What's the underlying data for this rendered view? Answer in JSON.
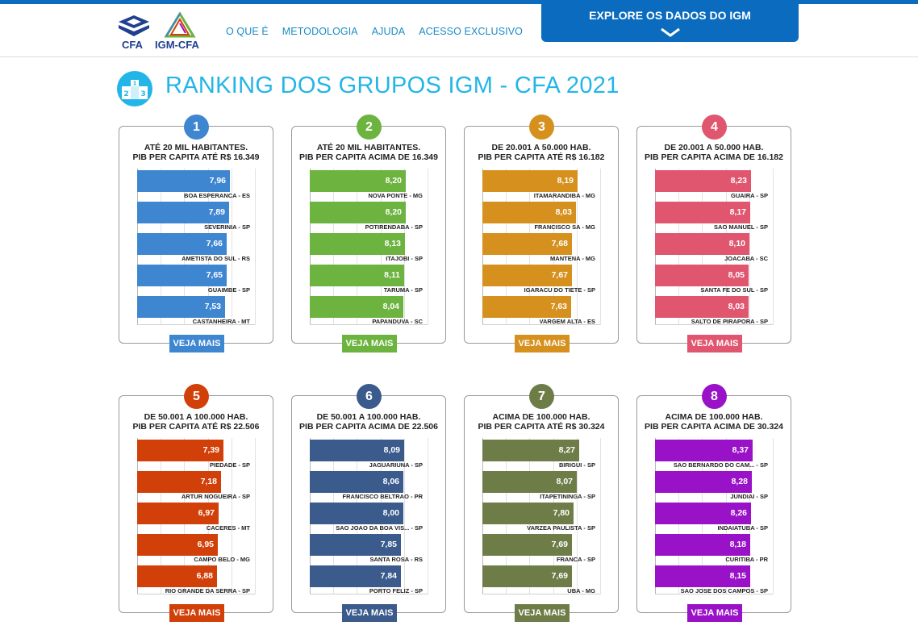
{
  "header": {
    "cfa_logo_text": "CFA",
    "igm_logo_text": "IGM-CFA",
    "nav": [
      "O QUE É",
      "METODOLOGIA",
      "AJUDA",
      "ACESSO EXCLUSIVO"
    ],
    "explore_label": "EXPLORE OS DADOS DO IGM"
  },
  "page_title": "RANKING DOS GRUPOS IGM - CFA 2021",
  "veja_label": "VEJA MAIS",
  "groups": [
    {
      "number": "1",
      "color": "#3f86d1",
      "title1": "ATÉ 20 MIL HABITANTES.",
      "title2": "PIB PER CAPITA ATÉ R$ 16.349",
      "rows": [
        {
          "value": "7,96",
          "v": 7.96,
          "city": "BOA ESPERANCA - ES"
        },
        {
          "value": "7,89",
          "v": 7.89,
          "city": "SEVERINIA - SP"
        },
        {
          "value": "7,66",
          "v": 7.66,
          "city": "AMETISTA DO SUL - RS"
        },
        {
          "value": "7,65",
          "v": 7.65,
          "city": "GUAIMBE - SP"
        },
        {
          "value": "7,53",
          "v": 7.53,
          "city": "CASTANHEIRA - MT"
        }
      ]
    },
    {
      "number": "2",
      "color": "#6cb33f",
      "title1": "ATÉ 20 MIL HABITANTES.",
      "title2": "PIB PER CAPITA ACIMA DE 16.349",
      "rows": [
        {
          "value": "8,20",
          "v": 8.2,
          "city": "NOVA PONTE - MG"
        },
        {
          "value": "8,20",
          "v": 8.2,
          "city": "POTIRENDABA - SP"
        },
        {
          "value": "8,13",
          "v": 8.13,
          "city": "ITAJOBI - SP"
        },
        {
          "value": "8,11",
          "v": 8.11,
          "city": "TARUMA - SP"
        },
        {
          "value": "8,04",
          "v": 8.04,
          "city": "PAPANDUVA - SC"
        }
      ]
    },
    {
      "number": "3",
      "color": "#d6901d",
      "title1": "DE 20.001 A 50.000 HAB.",
      "title2": "PIB PER CAPITA ATÉ R$ 16.182",
      "rows": [
        {
          "value": "8,19",
          "v": 8.19,
          "city": "ITAMARANDIBA - MG"
        },
        {
          "value": "8,03",
          "v": 8.03,
          "city": "FRANCISCO SA - MG"
        },
        {
          "value": "7,68",
          "v": 7.68,
          "city": "MANTENA - MG"
        },
        {
          "value": "7,67",
          "v": 7.67,
          "city": "IGARACU DO TIETE - SP"
        },
        {
          "value": "7,63",
          "v": 7.63,
          "city": "VARGEM ALTA - ES"
        }
      ]
    },
    {
      "number": "4",
      "color": "#e0566f",
      "title1": "DE 20.001 A 50.000 HAB.",
      "title2": "PIB PER CAPITA ACIMA DE 16.182",
      "rows": [
        {
          "value": "8,23",
          "v": 8.23,
          "city": "GUAIRA - SP"
        },
        {
          "value": "8,17",
          "v": 8.17,
          "city": "SAO MANUEL - SP"
        },
        {
          "value": "8,10",
          "v": 8.1,
          "city": "JOACABA - SC"
        },
        {
          "value": "8,05",
          "v": 8.05,
          "city": "SANTA FE DO SUL - SP"
        },
        {
          "value": "8,03",
          "v": 8.03,
          "city": "SALTO DE PIRAPORA - SP"
        }
      ]
    },
    {
      "number": "5",
      "color": "#d24009",
      "title1": "DE 50.001 A 100.000 HAB.",
      "title2": "PIB PER CAPITA ATÉ R$ 22.506",
      "rows": [
        {
          "value": "7,39",
          "v": 7.39,
          "city": "PIEDADE - SP"
        },
        {
          "value": "7,18",
          "v": 7.18,
          "city": "ARTUR NOGUEIRA - SP"
        },
        {
          "value": "6,97",
          "v": 6.97,
          "city": "CACERES - MT"
        },
        {
          "value": "6,95",
          "v": 6.95,
          "city": "CAMPO BELO - MG"
        },
        {
          "value": "6,88",
          "v": 6.88,
          "city": "RIO GRANDE DA SERRA - SP"
        }
      ]
    },
    {
      "number": "6",
      "color": "#3b5b8c",
      "title1": "DE 50.001 A 100.000 HAB.",
      "title2": "PIB PER CAPITA ACIMA DE 22.506",
      "rows": [
        {
          "value": "8,09",
          "v": 8.09,
          "city": "JAGUARIUNA - SP"
        },
        {
          "value": "8,06",
          "v": 8.06,
          "city": "FRANCISCO BELTRAO - PR"
        },
        {
          "value": "8,00",
          "v": 8.0,
          "city": "SAO JOAO DA BOA VIS... - SP"
        },
        {
          "value": "7,85",
          "v": 7.85,
          "city": "SANTA ROSA - RS"
        },
        {
          "value": "7,84",
          "v": 7.84,
          "city": "PORTO FELIZ - SP"
        }
      ]
    },
    {
      "number": "7",
      "color": "#6e7d48",
      "title1": "ACIMA DE 100.000 HAB.",
      "title2": "PIB PER CAPITA ATÉ R$ 30.324",
      "rows": [
        {
          "value": "8,27",
          "v": 8.27,
          "city": "BIRIGUI - SP"
        },
        {
          "value": "8,07",
          "v": 8.07,
          "city": "ITAPETININGA - SP"
        },
        {
          "value": "7,80",
          "v": 7.8,
          "city": "VARZEA PAULISTA - SP"
        },
        {
          "value": "7,69",
          "v": 7.69,
          "city": "FRANCA - SP"
        },
        {
          "value": "7,69",
          "v": 7.69,
          "city": "UBA - MG"
        }
      ]
    },
    {
      "number": "8",
      "color": "#9a12c8",
      "title1": "ACIMA DE 100.000 HAB.",
      "title2": "PIB PER CAPITA ACIMA DE 30.324",
      "rows": [
        {
          "value": "8,37",
          "v": 8.37,
          "city": "SAO BERNARDO DO CAM... - SP"
        },
        {
          "value": "8,28",
          "v": 8.28,
          "city": "JUNDIAI - SP"
        },
        {
          "value": "8,26",
          "v": 8.26,
          "city": "INDAIATUBA - SP"
        },
        {
          "value": "8,18",
          "v": 8.18,
          "city": "CURITIBA - PR"
        },
        {
          "value": "8,15",
          "v": 8.15,
          "city": "SAO JOSE DOS CAMPOS - SP"
        }
      ]
    }
  ]
}
